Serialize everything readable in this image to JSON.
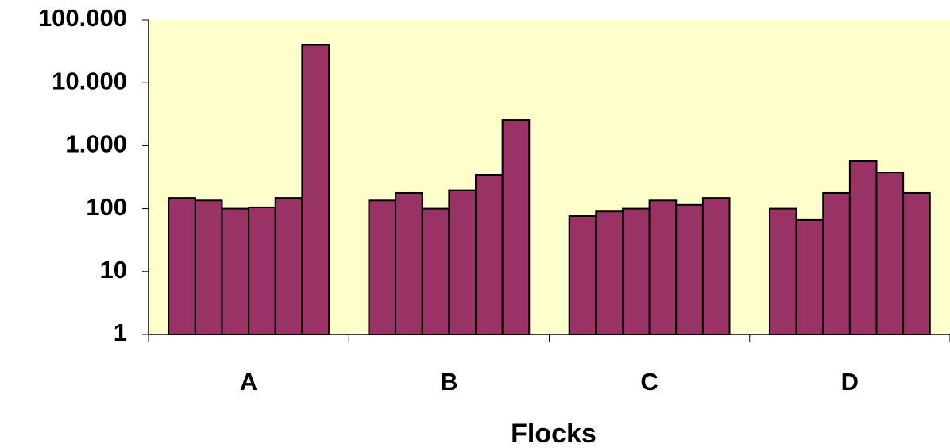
{
  "chart_data": {
    "type": "bar",
    "xlabel": "Flocks",
    "categories": [
      "A",
      "B",
      "C",
      "D"
    ],
    "series": [
      {
        "color": "#993366",
        "values": [
          148,
          135,
          76,
          100
        ]
      },
      {
        "color": "#993366",
        "values": [
          135,
          177,
          90,
          66
        ]
      },
      {
        "color": "#993366",
        "values": [
          100,
          100,
          100,
          177
        ]
      },
      {
        "color": "#993366",
        "values": [
          105,
          195,
          135,
          565
        ]
      },
      {
        "color": "#993366",
        "values": [
          148,
          345,
          115,
          375
        ]
      },
      {
        "color": "#993366",
        "values": [
          40000,
          2560,
          148,
          177
        ]
      }
    ],
    "yscale": "log",
    "ylim": [
      1,
      100000
    ],
    "yticks": [
      1,
      10,
      100,
      {
        "value": 1000,
        "label": "1.000"
      },
      {
        "value": 10000,
        "label": "10.000"
      },
      {
        "value": 100000,
        "label": "100.000"
      }
    ],
    "plot_background": "#ffffcc"
  }
}
